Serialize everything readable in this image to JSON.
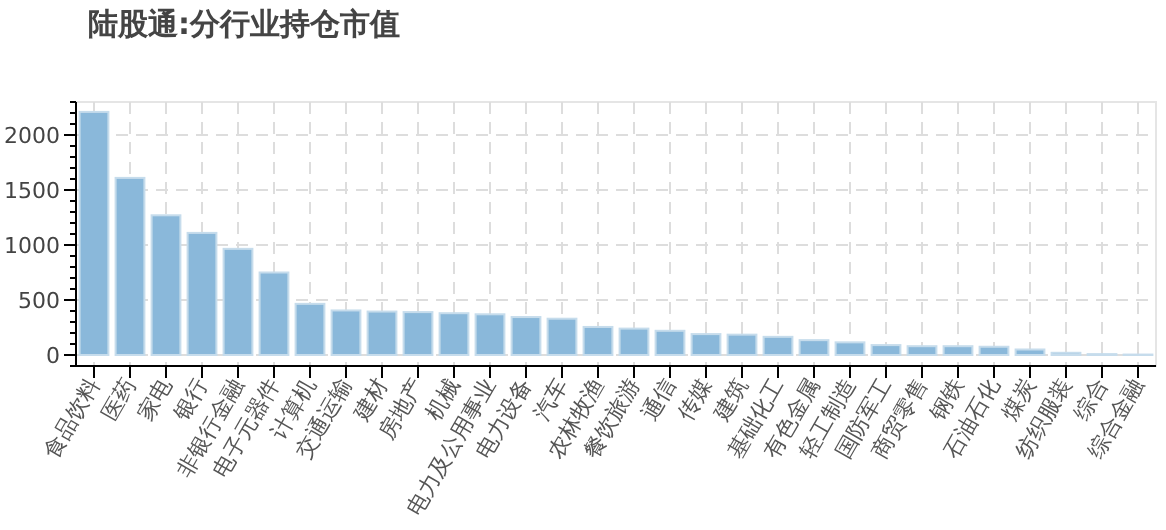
{
  "chart_data": {
    "type": "bar",
    "title": "陆股通:分行业持仓市值",
    "categories": [
      "食品饮料",
      "医药",
      "家电",
      "银行",
      "非银行金融",
      "电子元器件",
      "计算机",
      "交通运输",
      "建材",
      "房地产",
      "机械",
      "电力及公用事业",
      "电力设备",
      "汽车",
      "农林牧渔",
      "餐饮旅游",
      "通信",
      "传媒",
      "建筑",
      "基础化工",
      "有色金属",
      "轻工制造",
      "国防军工",
      "商贸零售",
      "钢铁",
      "石油石化",
      "煤炭",
      "纺织服装",
      "综合",
      "综合金融"
    ],
    "values": [
      2210,
      1610,
      1270,
      1110,
      965,
      750,
      465,
      405,
      395,
      390,
      380,
      370,
      345,
      330,
      255,
      240,
      220,
      190,
      185,
      165,
      135,
      115,
      90,
      80,
      80,
      75,
      50,
      20,
      8,
      4
    ],
    "color": "#8ab8da",
    "ylim": [
      -100,
      2300
    ],
    "yticks": [
      0,
      500,
      1000,
      1500,
      2000
    ],
    "grid": true
  }
}
